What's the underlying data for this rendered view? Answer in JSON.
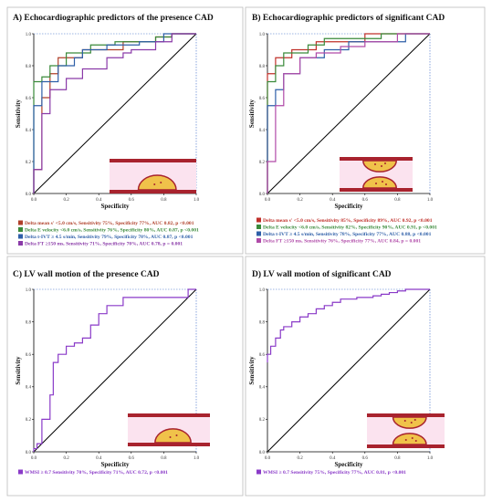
{
  "chart_data": [
    {
      "type": "line",
      "title": "A) Echocardiographic predictors of the presence CAD",
      "xlabel": "Specificity",
      "ylabel": "Sensitivity",
      "xlim": [
        0,
        1
      ],
      "ylim": [
        0,
        1
      ],
      "xticks": [
        "0.0",
        "0.2",
        "0.4",
        "0.6",
        "0.8",
        "1.0"
      ],
      "yticks": [
        "0.0",
        "0.2",
        "0.4",
        "0.6",
        "0.8",
        "1.0"
      ],
      "reference_line": true,
      "legend_position": "below",
      "series": [
        {
          "name": "Delta mean s' <5.0 cm/s, Sensitivity 75%, Specificity 77%, AUC 0.82, p <0.001",
          "color": "#b0402a",
          "x": [
            0,
            0,
            0.05,
            0.05,
            0.1,
            0.1,
            0.15,
            0.15,
            0.3,
            0.3,
            0.55,
            0.55,
            0.75,
            0.75,
            0.85,
            0.85,
            1
          ],
          "y": [
            0,
            0.15,
            0.15,
            0.6,
            0.6,
            0.75,
            0.75,
            0.85,
            0.85,
            0.9,
            0.9,
            0.95,
            0.95,
            0.98,
            0.98,
            1,
            1
          ]
        },
        {
          "name": "Delta E velocity <6.0 cm/s, Sensitivity 76%, Specificity 80%, AUC 0.87, p <0.001",
          "color": "#3a8a3a",
          "x": [
            0,
            0,
            0.05,
            0.05,
            0.1,
            0.1,
            0.2,
            0.2,
            0.35,
            0.35,
            0.5,
            0.5,
            0.75,
            0.75,
            0.85,
            0.85,
            1
          ],
          "y": [
            0,
            0.7,
            0.7,
            0.73,
            0.73,
            0.8,
            0.8,
            0.88,
            0.88,
            0.93,
            0.93,
            0.95,
            0.95,
            0.98,
            0.98,
            1,
            1
          ]
        },
        {
          "name": "Delta t-IVT ≥ 4.5 s/min, Sensitivity 79%, Specificity 78%, AUC 0.87, p <0.001",
          "color": "#2e5fa8",
          "x": [
            0,
            0,
            0.05,
            0.05,
            0.15,
            0.15,
            0.25,
            0.25,
            0.3,
            0.3,
            0.45,
            0.45,
            0.65,
            0.65,
            0.8,
            0.8,
            1
          ],
          "y": [
            0,
            0.55,
            0.55,
            0.7,
            0.7,
            0.8,
            0.8,
            0.85,
            0.85,
            0.9,
            0.9,
            0.93,
            0.93,
            0.95,
            0.95,
            1,
            1
          ]
        },
        {
          "name": "Delta FT ≥150 ms, Sensitivity 71%, Specificity 70%, AUC 0.78, p = 0.001",
          "color": "#8a3aa8",
          "x": [
            0,
            0,
            0.05,
            0.05,
            0.1,
            0.1,
            0.2,
            0.2,
            0.3,
            0.3,
            0.45,
            0.45,
            0.55,
            0.55,
            0.6,
            0.6,
            0.75,
            0.75,
            0.85,
            0.85,
            1
          ],
          "y": [
            0,
            0.15,
            0.15,
            0.5,
            0.5,
            0.65,
            0.65,
            0.72,
            0.72,
            0.78,
            0.78,
            0.85,
            0.85,
            0.88,
            0.88,
            0.9,
            0.9,
            0.95,
            0.95,
            1,
            1
          ]
        }
      ]
    },
    {
      "type": "line",
      "title": "B) Echocardiographic predictors of significant CAD",
      "xlabel": "Specificity",
      "ylabel": "Sensitivity",
      "xlim": [
        0,
        1
      ],
      "ylim": [
        0,
        1
      ],
      "xticks": [
        "0.0",
        "0.2",
        "0.4",
        "0.6",
        "0.8",
        "1.0"
      ],
      "yticks": [
        "0.0",
        "0.2",
        "0.4",
        "0.6",
        "0.8",
        "1.0"
      ],
      "reference_line": true,
      "legend_position": "below",
      "series": [
        {
          "name": "Delta mean s' <5.0 cm/s, Sensitivity 85%, Specificity 89%, AUC 0.92, p <0.001",
          "color": "#c0302a",
          "x": [
            0,
            0,
            0.05,
            0.05,
            0.15,
            0.15,
            0.3,
            0.3,
            0.6,
            0.6,
            0.7,
            0.7,
            1
          ],
          "y": [
            0,
            0.75,
            0.75,
            0.85,
            0.85,
            0.9,
            0.9,
            0.95,
            0.95,
            1,
            1,
            1,
            1
          ]
        },
        {
          "name": "Delta E velocity <6.0 cm/s, Sensitivity 82%, Specificity 90%, AUC 0.91, p <0.001",
          "color": "#3a8a3a",
          "x": [
            0,
            0,
            0.05,
            0.05,
            0.1,
            0.1,
            0.25,
            0.25,
            0.35,
            0.35,
            0.7,
            0.7,
            1
          ],
          "y": [
            0,
            0.7,
            0.7,
            0.8,
            0.8,
            0.88,
            0.88,
            0.93,
            0.93,
            0.97,
            0.97,
            1,
            1
          ]
        },
        {
          "name": "Delta t-IVT ≥ 4.5 s/min, Sensitivity 78%, Specificity 77%, AUC 0.88, p <0.001",
          "color": "#2e5fa8",
          "x": [
            0,
            0,
            0.05,
            0.05,
            0.1,
            0.1,
            0.2,
            0.2,
            0.35,
            0.35,
            0.5,
            0.5,
            0.85,
            0.85,
            1
          ],
          "y": [
            0,
            0.55,
            0.55,
            0.65,
            0.65,
            0.75,
            0.75,
            0.85,
            0.85,
            0.9,
            0.9,
            0.95,
            0.95,
            1,
            1
          ]
        },
        {
          "name": "Delta FT ≥150 ms, Sensitivity 76%, Specificity 77%, AUC 0.84, p = 0.001",
          "color": "#b04aa8",
          "x": [
            0,
            0,
            0.05,
            0.05,
            0.1,
            0.1,
            0.2,
            0.2,
            0.3,
            0.3,
            0.45,
            0.45,
            0.6,
            0.6,
            0.8,
            0.8,
            1
          ],
          "y": [
            0,
            0.2,
            0.2,
            0.55,
            0.55,
            0.75,
            0.75,
            0.85,
            0.85,
            0.88,
            0.88,
            0.92,
            0.92,
            0.95,
            0.95,
            1,
            1
          ]
        }
      ]
    },
    {
      "type": "line",
      "title": "C) LV wall motion of the presence CAD",
      "xlabel": "Specificity",
      "ylabel": "Sensitivity",
      "xlim": [
        0,
        1
      ],
      "ylim": [
        0,
        1
      ],
      "xticks": [
        "0.0",
        "0.2",
        "0.4",
        "0.6",
        "0.8",
        "1.0"
      ],
      "yticks": [
        "0.0",
        "0.2",
        "0.4",
        "0.6",
        "0.8",
        "1.0"
      ],
      "reference_line": true,
      "legend_position": "below",
      "series": [
        {
          "name": "WMSI ≥ 0.7 Sensitivity 70%, Specificity 71%, AUC 0.72, p <0.001",
          "color": "#8a3ac8",
          "x": [
            0,
            0,
            0.02,
            0.02,
            0.05,
            0.05,
            0.1,
            0.1,
            0.12,
            0.12,
            0.15,
            0.15,
            0.2,
            0.2,
            0.25,
            0.25,
            0.3,
            0.3,
            0.35,
            0.35,
            0.4,
            0.4,
            0.45,
            0.45,
            0.55,
            0.55,
            0.95,
            0.95,
            1
          ],
          "y": [
            0,
            0.02,
            0.02,
            0.05,
            0.05,
            0.2,
            0.2,
            0.35,
            0.35,
            0.55,
            0.55,
            0.6,
            0.6,
            0.65,
            0.65,
            0.67,
            0.67,
            0.7,
            0.7,
            0.78,
            0.78,
            0.85,
            0.85,
            0.9,
            0.9,
            0.95,
            0.95,
            1,
            1
          ]
        }
      ]
    },
    {
      "type": "line",
      "title": "D) LV wall motion of significant CAD",
      "xlabel": "Specificity",
      "ylabel": "Sensitivity",
      "xlim": [
        0,
        1
      ],
      "ylim": [
        0,
        1
      ],
      "xticks": [
        "0.0",
        "0.2",
        "0.4",
        "0.6",
        "0.8",
        "1.0"
      ],
      "yticks": [
        "0.0",
        "0.2",
        "0.4",
        "0.6",
        "0.8",
        "1.0"
      ],
      "reference_line": true,
      "legend_position": "below",
      "series": [
        {
          "name": "WMSI ≥ 0.7 Sensitivity 75%, Specificity 77%, AUC 0.81, p <0.001",
          "color": "#8a3ac8",
          "x": [
            0,
            0,
            0.02,
            0.02,
            0.05,
            0.05,
            0.08,
            0.08,
            0.1,
            0.1,
            0.15,
            0.15,
            0.2,
            0.2,
            0.25,
            0.25,
            0.3,
            0.3,
            0.35,
            0.35,
            0.4,
            0.4,
            0.45,
            0.45,
            0.55,
            0.55,
            0.65,
            0.65,
            0.7,
            0.7,
            0.75,
            0.75,
            0.8,
            0.8,
            0.85,
            0.85,
            0.9,
            0.9,
            1
          ],
          "y": [
            0.55,
            0.6,
            0.6,
            0.65,
            0.65,
            0.7,
            0.7,
            0.75,
            0.75,
            0.77,
            0.77,
            0.8,
            0.8,
            0.83,
            0.83,
            0.85,
            0.85,
            0.88,
            0.88,
            0.9,
            0.9,
            0.92,
            0.92,
            0.94,
            0.94,
            0.95,
            0.95,
            0.96,
            0.96,
            0.97,
            0.97,
            0.98,
            0.98,
            0.99,
            0.99,
            1,
            1,
            1,
            1
          ]
        }
      ]
    }
  ]
}
